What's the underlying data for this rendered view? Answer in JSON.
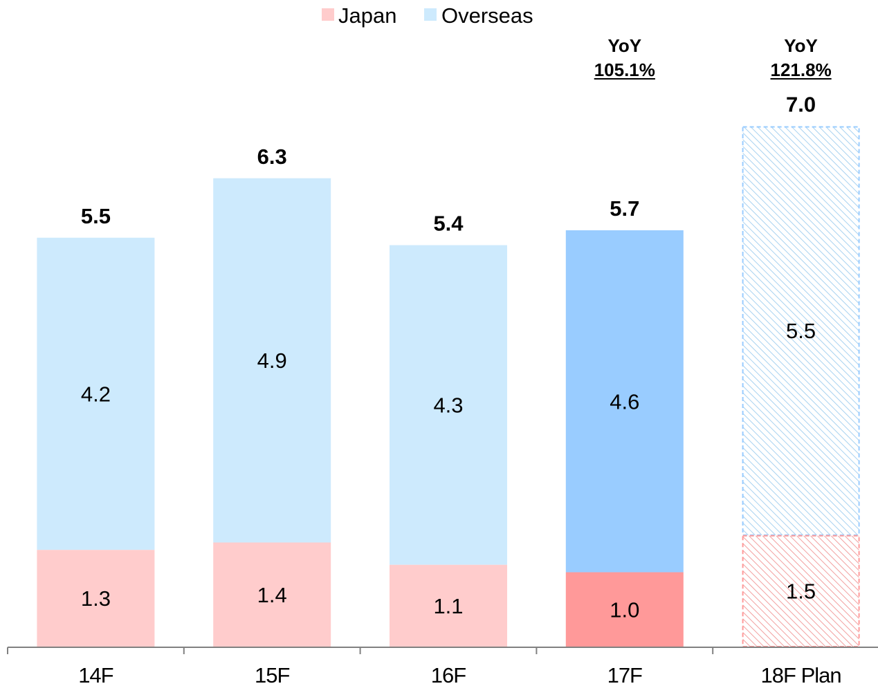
{
  "chart_data": {
    "type": "bar",
    "stacked": true,
    "categories": [
      "14F",
      "15F",
      "16F",
      "17F",
      "18F Plan"
    ],
    "series": [
      {
        "name": "Japan",
        "values": [
          1.3,
          1.4,
          1.1,
          1.0,
          1.5
        ]
      },
      {
        "name": "Overseas",
        "values": [
          4.2,
          4.9,
          4.3,
          4.6,
          5.5
        ]
      }
    ],
    "totals": [
      "5.5",
      "6.3",
      "5.4",
      "5.7",
      "7.0"
    ],
    "segment_labels": {
      "Japan": [
        "1.3",
        "1.4",
        "1.1",
        "1.0",
        "1.5"
      ],
      "Overseas": [
        "4.2",
        "4.9",
        "4.3",
        "4.6",
        "5.5"
      ]
    },
    "annotations": [
      {
        "category": "17F",
        "line1": "YoY",
        "line2": "105.1%"
      },
      {
        "category": "18F Plan",
        "line1": "YoY",
        "line2": "121.8%"
      }
    ],
    "highlight_category": "17F",
    "plan_category": "18F Plan",
    "legend": {
      "position": "top-center",
      "entries": [
        "Japan",
        "Overseas"
      ]
    },
    "ylim": [
      0,
      7.4
    ],
    "grid": false,
    "colors": {
      "japan": "#ffcccc",
      "overseas": "#cdeafd",
      "japan_highlight": "#ff9999",
      "overseas_highlight": "#99ccff",
      "plan_japan_stroke": "#ff9999",
      "plan_overseas_stroke": "#99ccff",
      "axis": "#808080"
    }
  }
}
